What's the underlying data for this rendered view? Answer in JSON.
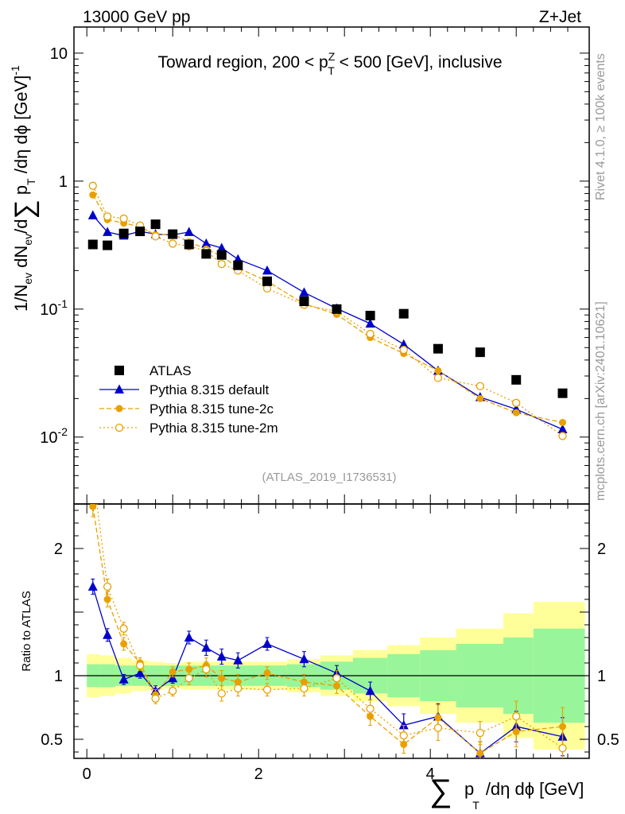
{
  "header": {
    "left": "13000 GeV pp",
    "right": "Z+Jet"
  },
  "side": {
    "top": "Rivet 4.1.0, ≥ 100k events",
    "bottom": "mcplots.cern.ch [arXiv:2401.10621]"
  },
  "chart_data": {
    "type": "line",
    "title": "Toward region, 200 < pZT < 500 [GeV], inclusive",
    "title_parts": {
      "prefix": "Toward region, 200 < p",
      "sup": "Z",
      "sub": "T",
      "suffix": " < 500 [GeV], inclusive"
    },
    "watermark": "(ATLAS_2019_I1736531)",
    "xlabel": "∑ pT /dη dϕ [GeV]",
    "xlabel_parts": {
      "sigma": "∑",
      "p": "p",
      "sub": "T",
      "rest": "/dη dϕ [GeV]"
    },
    "ylabel_main": "1/Nev dNev/d∑ pT /dη dϕ [GeV]^-1",
    "ylabel_ratio": "Ratio to ATLAS",
    "xlim": [
      -0.15,
      5.85
    ],
    "ylim_main": [
      0.003,
      16
    ],
    "ylim_ratio": [
      0.35,
      2.35
    ],
    "x_ticks": [
      "0",
      "2",
      "4"
    ],
    "y_ticks_main": [
      "10",
      "1",
      "10⁻¹",
      "10⁻²"
    ],
    "y_ticks_ratio": [
      "2",
      "1",
      "0.5"
    ],
    "x": [
      0.07,
      0.24,
      0.43,
      0.62,
      0.8,
      1.0,
      1.19,
      1.39,
      1.57,
      1.76,
      2.1,
      2.53,
      2.91,
      3.3,
      3.69,
      4.09,
      4.58,
      5.0,
      5.54
    ],
    "bin_edges": [
      0.0,
      0.15,
      0.33,
      0.52,
      0.72,
      0.9,
      1.1,
      1.28,
      1.48,
      1.67,
      1.86,
      2.33,
      2.72,
      3.1,
      3.5,
      3.88,
      4.3,
      4.85,
      5.2,
      5.8
    ],
    "legend": [
      {
        "name": "ATLAS",
        "color": "#000000",
        "marker": "square",
        "dash": ""
      },
      {
        "name": "Pythia 8.315 default",
        "color": "#0000cc",
        "marker": "triangle",
        "dash": ""
      },
      {
        "name": "Pythia 8.315 tune-2c",
        "color": "#e8a000",
        "marker": "circle",
        "dash": "6,3"
      },
      {
        "name": "Pythia 8.315 tune-2m",
        "color": "#e8a000",
        "marker": "open-circle",
        "dash": "2,3"
      }
    ],
    "series": [
      {
        "name": "ATLAS",
        "values": [
          0.32,
          0.315,
          0.39,
          0.405,
          0.46,
          0.385,
          0.32,
          0.27,
          0.265,
          0.22,
          0.165,
          0.115,
          0.1,
          0.089,
          0.092,
          0.049,
          0.046,
          0.028,
          0.022
        ]
      },
      {
        "name": "Pythia 8.315 default",
        "values": [
          0.54,
          0.4,
          0.375,
          0.405,
          0.385,
          0.38,
          0.4,
          0.325,
          0.3,
          0.245,
          0.2,
          0.135,
          0.101,
          0.077,
          0.053,
          0.033,
          0.0205,
          0.0165,
          0.0115
        ]
      },
      {
        "name": "Pythia 8.315 tune-2c",
        "values": [
          0.78,
          0.5,
          0.47,
          0.44,
          0.38,
          0.385,
          0.335,
          0.295,
          0.26,
          0.21,
          0.165,
          0.11,
          0.091,
          0.06,
          0.045,
          0.033,
          0.02,
          0.0155,
          0.013
        ]
      },
      {
        "name": "Pythia 8.315 tune-2m",
        "values": [
          0.92,
          0.53,
          0.51,
          0.45,
          0.37,
          0.325,
          0.31,
          0.285,
          0.225,
          0.2,
          0.145,
          0.108,
          0.096,
          0.064,
          0.048,
          0.029,
          0.025,
          0.0185,
          0.0102
        ]
      }
    ],
    "main_errors": [
      0.02,
      0.015,
      0.015,
      0.012,
      0.012,
      0.012,
      0.012,
      0.012,
      0.015,
      0.015,
      0.012,
      0.012,
      0.01,
      0.01,
      0.01,
      0.006,
      0.005,
      0.003,
      0.0035
    ],
    "ratio_series": [
      {
        "name": "Pythia 8.315 default",
        "values": [
          1.7,
          1.32,
          0.97,
          1.02,
          0.88,
          0.98,
          1.3,
          1.22,
          1.15,
          1.12,
          1.25,
          1.13,
          1.02,
          0.88,
          0.61,
          0.68,
          0.39,
          0.6,
          0.52
        ],
        "errors": [
          0.06,
          0.05,
          0.04,
          0.04,
          0.04,
          0.04,
          0.05,
          0.06,
          0.06,
          0.06,
          0.05,
          0.06,
          0.06,
          0.07,
          0.09,
          0.1,
          0.09,
          0.12,
          0.15
        ]
      },
      {
        "name": "Pythia 8.315 tune-2c",
        "values": [
          2.33,
          1.6,
          1.25,
          1.1,
          0.85,
          1.03,
          1.05,
          1.08,
          0.98,
          0.95,
          1.02,
          0.95,
          0.92,
          0.68,
          0.46,
          0.67,
          0.39,
          0.56,
          0.6
        ],
        "errors": [
          0.08,
          0.06,
          0.05,
          0.04,
          0.04,
          0.04,
          0.05,
          0.06,
          0.06,
          0.06,
          0.05,
          0.06,
          0.06,
          0.07,
          0.07,
          0.1,
          0.09,
          0.12,
          0.15
        ]
      },
      {
        "name": "Pythia 8.315 tune-2m",
        "values": [
          2.6,
          1.7,
          1.37,
          1.08,
          0.82,
          0.88,
          0.98,
          1.05,
          0.86,
          0.9,
          0.89,
          0.9,
          0.98,
          0.74,
          0.53,
          0.59,
          0.55,
          0.68,
          0.43
        ],
        "errors": [
          0.08,
          0.06,
          0.05,
          0.04,
          0.04,
          0.04,
          0.05,
          0.06,
          0.06,
          0.06,
          0.05,
          0.06,
          0.06,
          0.07,
          0.08,
          0.1,
          0.09,
          0.12,
          0.15
        ]
      }
    ],
    "ratio_bands": {
      "stat_rel": [
        0.09,
        0.09,
        0.08,
        0.08,
        0.08,
        0.08,
        0.08,
        0.08,
        0.08,
        0.08,
        0.08,
        0.09,
        0.11,
        0.14,
        0.17,
        0.2,
        0.25,
        0.3,
        0.37
      ],
      "total_rel": [
        0.17,
        0.16,
        0.14,
        0.12,
        0.11,
        0.1,
        0.11,
        0.11,
        0.11,
        0.11,
        0.11,
        0.13,
        0.16,
        0.2,
        0.24,
        0.3,
        0.37,
        0.49,
        0.58
      ],
      "stat_color": "#99f599",
      "total_color": "#ffff99"
    }
  }
}
